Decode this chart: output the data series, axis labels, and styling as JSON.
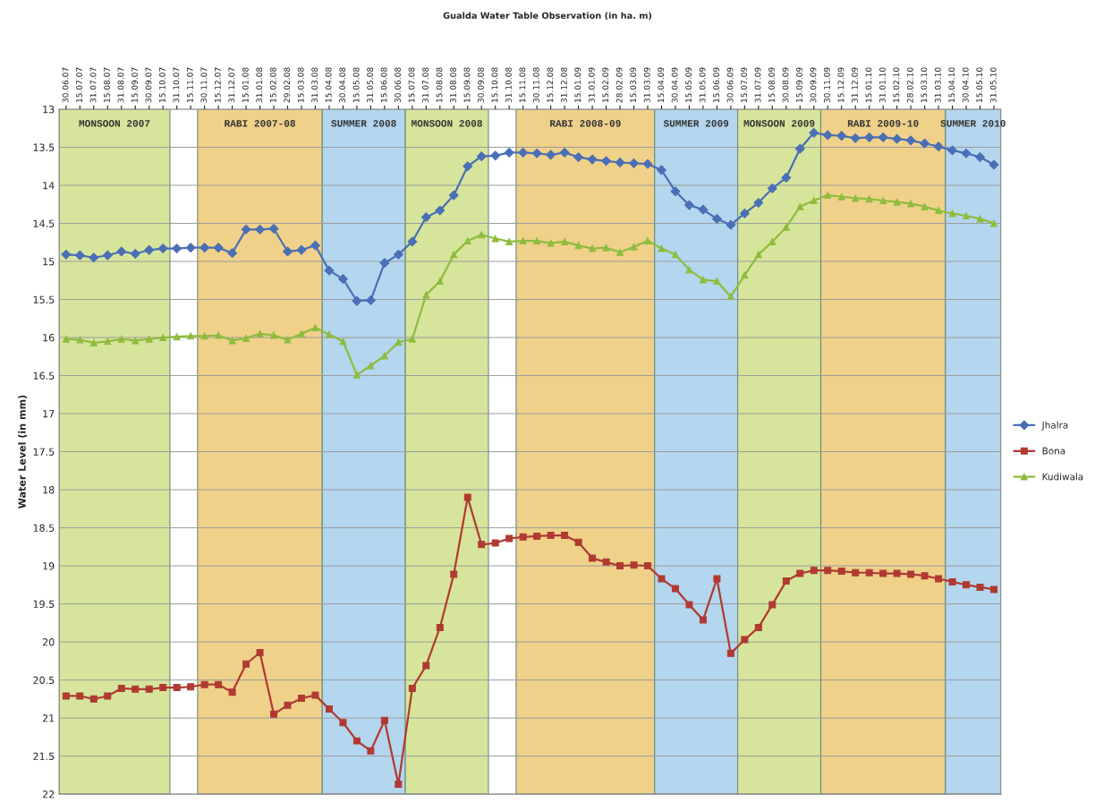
{
  "chart_data": {
    "type": "line",
    "title": "Gualda Water Table Observation (in ha. m)",
    "ylabel": "Water Level (in mm)",
    "categories": [
      "30.06.07",
      "15.07.07",
      "31.07.07",
      "15.08.07",
      "31.08.07",
      "15.09.07",
      "30.09.07",
      "15.10.07",
      "31.10.07",
      "15.11.07",
      "30.11.07",
      "15.12.07",
      "31.12.07",
      "15.01.08",
      "31.01.08",
      "15.02.08",
      "29.02.08",
      "15.03.08",
      "31.03.08",
      "15.04.08",
      "30.04.08",
      "15.05.08",
      "31.05.08",
      "15.06.08",
      "30.06.08",
      "15.07.08",
      "31.07.08",
      "15.08.08",
      "31.08.08",
      "15.09.08",
      "30.09.08",
      "15.10.08",
      "31.10.08",
      "15.11.08",
      "30.11.08",
      "15.12.08",
      "31.12.08",
      "15.01.09",
      "31.01.09",
      "15.02.09",
      "28.02.09",
      "15.03.09",
      "31.03.09",
      "15.04.09",
      "30.04.09",
      "15.05.09",
      "31.05.09",
      "15.06.09",
      "30.06.09",
      "15.07.09",
      "31.07.09",
      "15.08.09",
      "30.08.09",
      "15.09.09",
      "30.09.09",
      "30.11.09",
      "15.12.09",
      "31.12.09",
      "15.01.10",
      "31.01.10",
      "15.02.10",
      "28.02.10",
      "15.03.10",
      "31.03.10",
      "15.04.10",
      "30.04.10",
      "15.05.10",
      "31.05.10"
    ],
    "series": [
      {
        "name": "Jhalra",
        "color": "#4a6fb5",
        "marker": "diamond",
        "values": [
          14.91,
          14.92,
          14.95,
          14.92,
          14.87,
          14.9,
          14.85,
          14.83,
          14.83,
          14.82,
          14.82,
          14.82,
          14.89,
          14.58,
          14.58,
          14.57,
          14.87,
          14.85,
          14.79,
          15.12,
          15.23,
          15.52,
          15.51,
          15.02,
          14.91,
          14.74,
          14.42,
          14.33,
          14.13,
          13.75,
          13.62,
          13.61,
          13.57,
          13.57,
          13.58,
          13.6,
          13.57,
          13.63,
          13.66,
          13.68,
          13.7,
          13.71,
          13.72,
          13.8,
          14.08,
          14.26,
          14.32,
          14.44,
          14.52,
          14.37,
          14.23,
          14.04,
          13.9,
          13.52,
          13.31,
          13.34,
          13.35,
          13.38,
          13.37,
          13.37,
          13.39,
          13.41,
          13.45,
          13.49,
          13.54,
          13.58,
          13.63,
          13.73
        ]
      },
      {
        "name": "Bona",
        "color": "#b03a32",
        "marker": "square",
        "values": [
          20.71,
          20.71,
          20.75,
          20.71,
          20.61,
          20.62,
          20.62,
          20.6,
          20.6,
          20.59,
          20.56,
          20.56,
          20.66,
          20.29,
          20.14,
          20.95,
          20.83,
          20.74,
          20.7,
          20.88,
          21.06,
          21.3,
          21.43,
          21.03,
          21.87,
          20.61,
          20.31,
          19.81,
          19.11,
          18.1,
          18.72,
          18.7,
          18.64,
          18.62,
          18.61,
          18.6,
          18.6,
          18.69,
          18.9,
          18.95,
          19.0,
          18.99,
          19.0,
          19.17,
          19.3,
          19.51,
          19.71,
          19.17,
          20.15,
          19.97,
          19.81,
          19.51,
          19.2,
          19.1,
          19.06,
          19.06,
          19.07,
          19.09,
          19.09,
          19.1,
          19.1,
          19.11,
          19.13,
          19.17,
          19.21,
          19.25,
          19.28,
          19.31
        ]
      },
      {
        "name": "Kudiwala",
        "color": "#8fbc3f",
        "marker": "triangle",
        "values": [
          16.02,
          16.03,
          16.07,
          16.05,
          16.02,
          16.04,
          16.02,
          16.0,
          15.99,
          15.98,
          15.98,
          15.97,
          16.04,
          16.01,
          15.95,
          15.97,
          16.03,
          15.95,
          15.87,
          15.96,
          16.05,
          16.49,
          16.37,
          16.24,
          16.06,
          16.02,
          15.44,
          15.26,
          14.91,
          14.73,
          14.65,
          14.7,
          14.74,
          14.73,
          14.73,
          14.76,
          14.74,
          14.79,
          14.83,
          14.82,
          14.88,
          14.81,
          14.73,
          14.83,
          14.91,
          15.11,
          15.24,
          15.26,
          15.46,
          15.18,
          14.91,
          14.74,
          14.55,
          14.28,
          14.2,
          14.13,
          14.15,
          14.17,
          14.18,
          14.2,
          14.22,
          14.24,
          14.28,
          14.33,
          14.37,
          14.4,
          14.44,
          14.5
        ]
      }
    ],
    "ylim": [
      22,
      13
    ],
    "yticks": [
      13,
      13.5,
      14,
      14.5,
      15,
      15.5,
      16,
      16.5,
      17,
      17.5,
      18,
      18.5,
      19,
      19.5,
      20,
      20.5,
      21,
      21.5,
      22
    ],
    "bands": [
      {
        "axis": "x",
        "from": "30.06.07",
        "to": "15.10.07",
        "label": "MONSOON 2007",
        "color": "#d6e59b"
      },
      {
        "axis": "x",
        "from": "30.11.07",
        "to": "31.03.08",
        "label": "RABI 2007-08",
        "color": "#efd18a"
      },
      {
        "axis": "x",
        "from": "15.04.08",
        "to": "30.06.08",
        "label": "SUMMER 2008",
        "color": "#b4d6ef"
      },
      {
        "axis": "x",
        "from": "15.07.08",
        "to": "30.09.08",
        "label": "MONSOON 2008",
        "color": "#d6e59b"
      },
      {
        "axis": "x",
        "from": "15.11.08",
        "to": "31.03.09",
        "label": "RABI 2008-09",
        "color": "#efd18a"
      },
      {
        "axis": "x",
        "from": "15.04.09",
        "to": "30.06.09",
        "label": "SUMMER 2009",
        "color": "#b4d6ef"
      },
      {
        "axis": "x",
        "from": "15.07.09",
        "to": "30.09.09",
        "label": "MONSOON 2009",
        "color": "#d6e59b"
      },
      {
        "axis": "x",
        "from": "30.11.09",
        "to": "31.03.10",
        "label": "RABI 2009-10",
        "color": "#efd18a"
      },
      {
        "axis": "x",
        "from": "15.04.10",
        "to": "31.05.10",
        "label": "SUMMER 2010",
        "color": "#b4d6ef"
      }
    ],
    "grid": "y",
    "legend": "right"
  }
}
